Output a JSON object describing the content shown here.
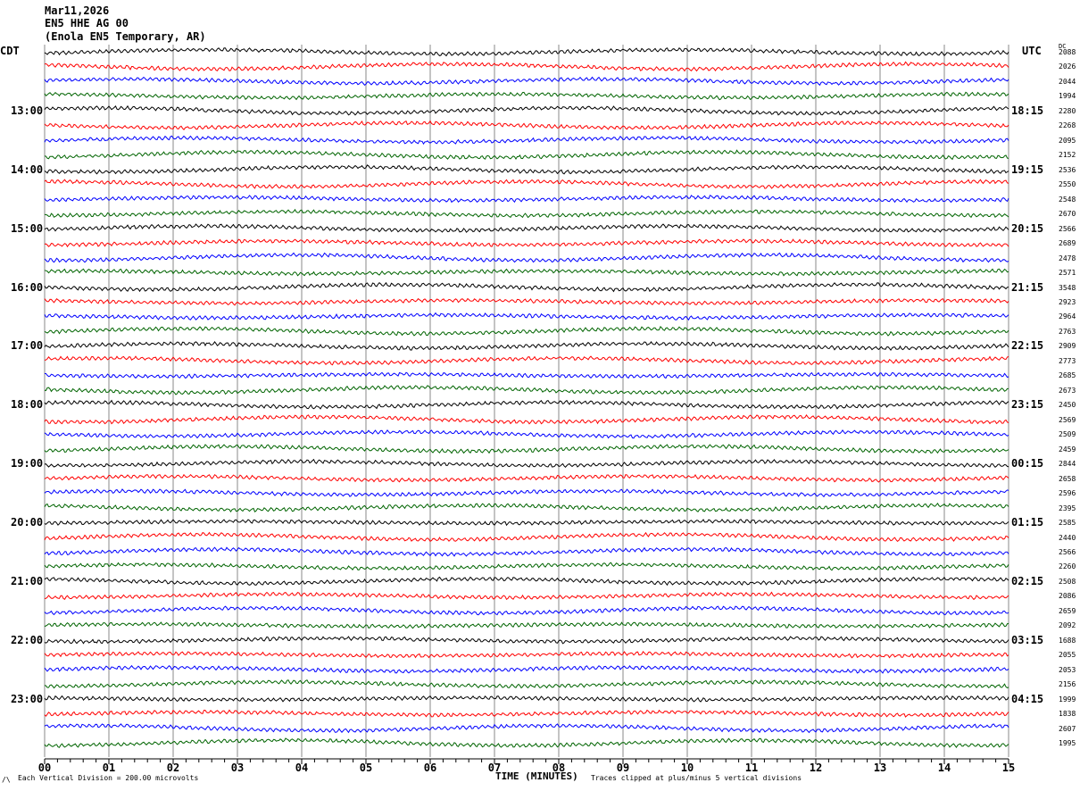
{
  "header": {
    "date": "Mar11,2026",
    "channel": "EN5 HHE AG 00",
    "station": "(Enola EN5 Temporary, AR)"
  },
  "left_tz": "CDT",
  "right_tz": "UTC",
  "dc_header": "DC",
  "footer": {
    "scale": "Each Vertical Division =  200.00 microvolts",
    "xlabel": "TIME (MINUTES)",
    "clip_note": "Traces clipped at plus/minus 5 vertical divisions",
    "corner_mark": "/\\"
  },
  "chart_data": {
    "type": "line",
    "title": "Mar11,2026 EN5 HHE AG 00 (Enola EN5 Temporary, AR)",
    "xlabel": "TIME (MINUTES)",
    "xlim": [
      0,
      15
    ],
    "x_ticks": [
      "00",
      "01",
      "02",
      "03",
      "04",
      "05",
      "06",
      "07",
      "08",
      "09",
      "10",
      "11",
      "12",
      "13",
      "14",
      "15"
    ],
    "grid": true,
    "colors": [
      "#000000",
      "#ff0000",
      "#0000ff",
      "#006400"
    ],
    "left_hour_labels": [
      "13:00",
      "14:00",
      "15:00",
      "16:00",
      "17:00",
      "18:00",
      "19:00",
      "20:00",
      "21:00",
      "22:00",
      "23:00"
    ],
    "right_hour_labels": [
      "18:15",
      "19:15",
      "20:15",
      "21:15",
      "22:15",
      "23:15",
      "00:15",
      "01:15",
      "02:15",
      "03:15",
      "04:15"
    ],
    "dc_values": [
      "2088",
      "2026",
      "2044",
      "1994",
      "2280",
      "2268",
      "2095",
      "2152",
      "2536",
      "2550",
      "2548",
      "2670",
      "2566",
      "2689",
      "2478",
      "2571",
      "3548",
      "2923",
      "2964",
      "2763",
      "2909",
      "2773",
      "2685",
      "2673",
      "2450",
      "2569",
      "2509",
      "2459",
      "2844",
      "2658",
      "2596",
      "2395",
      "2585",
      "2440",
      "2566",
      "2260",
      "2508",
      "2086",
      "2659",
      "2092",
      "1688",
      "2055",
      "2053",
      "2156",
      "1999",
      "1838",
      "2607",
      "1995"
    ]
  }
}
